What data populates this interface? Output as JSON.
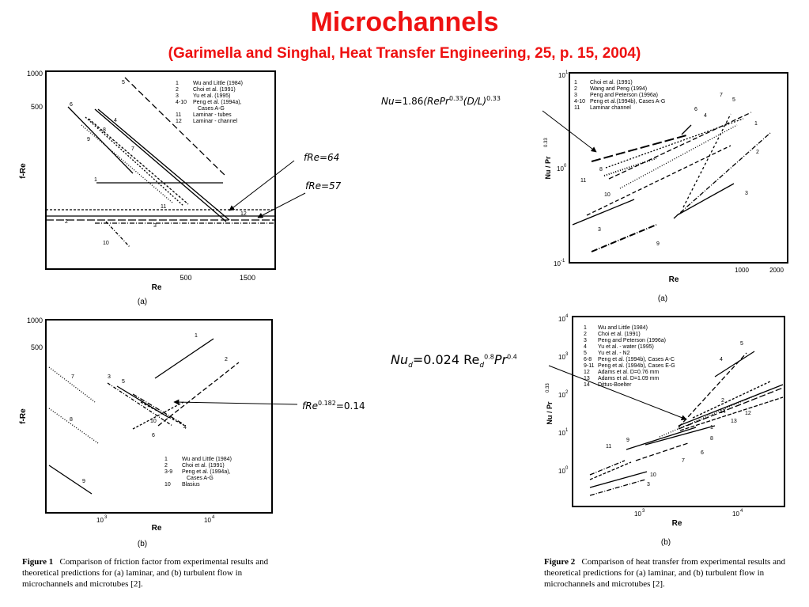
{
  "header": {
    "title": "Microchannels",
    "subtitle": "(Garimella and Singhal, Heat Transfer Engineering, 25,  p. 15, 2004)"
  },
  "equations": {
    "nu_laminar": {
      "base": "Nu",
      "rest1": "=1.86",
      "paren1": "(RePr",
      "exp1": "0.33",
      "paren2": "(D/L)",
      "exp2": "0.33"
    },
    "fre64": "fRe=64",
    "fre57": "fRe=57",
    "fre_turb_base": "fRe",
    "fre_turb_exp": "0.182",
    "fre_turb_rest": "=0.14",
    "nu_turb": {
      "nu": "Nu",
      "nu_sub": "d",
      "mid": "=0.024 Re",
      "re_sub": "d",
      "re_exp": "0.8",
      "pr": "Pr",
      "pr_exp": "0.4"
    }
  },
  "captions": {
    "fig1_label": "Figure 1",
    "fig1_text": "Comparison of friction factor from experimental results and theoretical predictions for (a) laminar, and (b) turbulent flow in microchannels and microtubes [2].",
    "fig2_label": "Figure 2",
    "fig2_text": "Comparison of heat transfer from experimental results and theoretical predictions for (a) laminar, and (b) turbulent flow in microchannels and microtubes [2]."
  },
  "chart_data": [
    {
      "id": "fig1a",
      "type": "line",
      "panel_label": "(a)",
      "xlabel": "Re",
      "ylabel": "f-Re",
      "xticks": [
        "500",
        "1500"
      ],
      "yticks": [
        "1000",
        "500"
      ],
      "legend": [
        [
          "1",
          "Wu and Little (1984)"
        ],
        [
          "2",
          "Choi et al. (1991)"
        ],
        [
          "3",
          "Yu et al. (1995)"
        ],
        [
          "4-10",
          "Peng et al. (1994a),"
        ],
        [
          "",
          "Cases A-G"
        ],
        [
          "11",
          "Laminar - tubes"
        ],
        [
          "12",
          "Laminar - channel"
        ]
      ],
      "series_labels": [
        "5",
        "6",
        "4",
        "8",
        "7",
        "9",
        "1",
        "11",
        "12",
        "2",
        "3",
        "10"
      ],
      "reference_lines": {
        "laminar_channel_fRe": 64,
        "laminar_tube_fRe": 57
      }
    },
    {
      "id": "fig1b",
      "type": "line",
      "panel_label": "(b)",
      "xlabel": "Re",
      "ylabel": "f-Re",
      "xticks": [
        "10",
        "10"
      ],
      "xtick_exps": [
        "3",
        "4"
      ],
      "yticks": [
        "1000",
        "500"
      ],
      "legend": [
        [
          "1",
          "Wu and Little (1984)"
        ],
        [
          "2",
          "Choi et al. (1991)"
        ],
        [
          "3-9",
          "Peng et al. (1994a),"
        ],
        [
          "",
          "Cases A-G"
        ],
        [
          "10",
          "Blasius"
        ]
      ],
      "series_labels": [
        "1",
        "2",
        "7",
        "3",
        "5",
        "8",
        "10",
        "4",
        "6",
        "9"
      ]
    },
    {
      "id": "fig2a",
      "type": "line",
      "panel_label": "(a)",
      "xlabel": "Re",
      "ylabel": "Nu / Pr",
      "ylabel_exp": "0.33",
      "xticks": [
        "1000",
        "2000"
      ],
      "yticks": [
        "10",
        "10",
        "10"
      ],
      "ytick_exps": [
        "1",
        "0",
        "-1"
      ],
      "legend": [
        [
          "1",
          "Choi et al. (1991)"
        ],
        [
          "2",
          "Wang and Peng (1994)"
        ],
        [
          "3",
          "Peng and Peterson (1996a)"
        ],
        [
          "4-10",
          "Peng et al.(1994b), Cases A-G"
        ],
        [
          "11",
          "Laminar channel"
        ]
      ],
      "series_labels": [
        "7",
        "5",
        "6",
        "4",
        "1",
        "2",
        "8",
        "10",
        "11",
        "3",
        "3",
        "9"
      ]
    },
    {
      "id": "fig2b",
      "type": "line",
      "panel_label": "(b)",
      "xlabel": "Re",
      "ylabel": "Nu / Pr",
      "ylabel_exp": "0.33",
      "xticks": [
        "10",
        "10"
      ],
      "xtick_exps": [
        "3",
        "4"
      ],
      "yticks": [
        "10",
        "10",
        "10",
        "10",
        "10"
      ],
      "ytick_exps": [
        "4",
        "3",
        "2",
        "1",
        "0"
      ],
      "legend": [
        [
          "1",
          "Wu and Little (1984)"
        ],
        [
          "2",
          "Choi et al. (1991)"
        ],
        [
          "3",
          "Peng and Peterson (1996a)"
        ],
        [
          "4",
          "Yu et al. - water (1995)"
        ],
        [
          "5",
          "Yu et al. -  N2"
        ],
        [
          "6-8",
          "Peng et al. (1994b), Cases A-C"
        ],
        [
          "9-11",
          "Peng et al. (1994b), Cases E-G"
        ],
        [
          "12",
          "Adams et al. D=0.76 mm"
        ],
        [
          "13",
          "Adams et al. D=1.09 mm"
        ],
        [
          "14",
          "Dittus-Boelter"
        ]
      ],
      "series_labels": [
        "5",
        "4",
        "2",
        "12",
        "13",
        "14",
        "1",
        "8",
        "6",
        "7",
        "11",
        "9",
        "10",
        "3"
      ]
    }
  ]
}
